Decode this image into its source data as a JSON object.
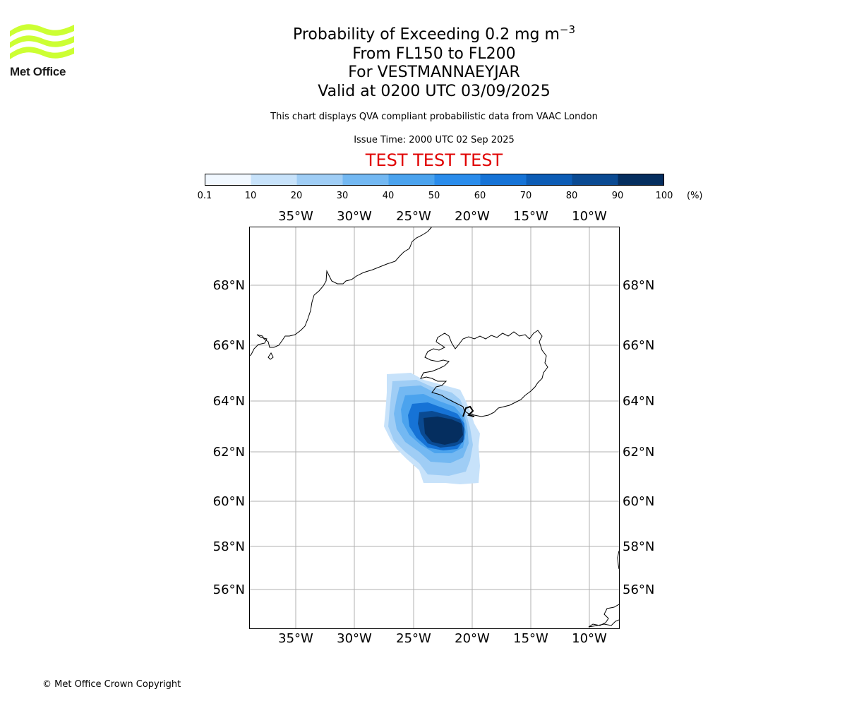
{
  "header": {
    "title_main": "Probability of Exceeding 0.2 mg m",
    "title_sup": "−3",
    "title_levels": "From FL150 to FL200",
    "title_location": "For VESTMANNAEYJAR",
    "title_valid": "Valid at 0200 UTC 03/09/2025",
    "disclaimer": "This chart displays QVA compliant probabilistic data from VAAC London",
    "issue_time": "Issue Time: 2000 UTC 02 Sep 2025",
    "test_banner": "TEST TEST TEST"
  },
  "logo": {
    "text": "Met Office",
    "color": "#ccff33"
  },
  "colorbar": {
    "ticks": [
      "0.1",
      "10",
      "20",
      "30",
      "40",
      "50",
      "60",
      "70",
      "80",
      "90",
      "100"
    ],
    "unit": "(%)",
    "colors": [
      "#f1f8ff",
      "#c7e2fa",
      "#9fcdf5",
      "#73b8f2",
      "#4ba3ee",
      "#2a8ceb",
      "#1673d6",
      "#0c5cb5",
      "#0a4a92",
      "#052e5f"
    ]
  },
  "map": {
    "lon_labels": [
      "35°W",
      "30°W",
      "25°W",
      "20°W",
      "15°W",
      "10°W"
    ],
    "lat_labels": [
      "68°N",
      "66°N",
      "64°N",
      "62°N",
      "60°N",
      "58°N",
      "56°N"
    ]
  },
  "footer": {
    "copyright": "© Met Office Crown Copyright"
  }
}
